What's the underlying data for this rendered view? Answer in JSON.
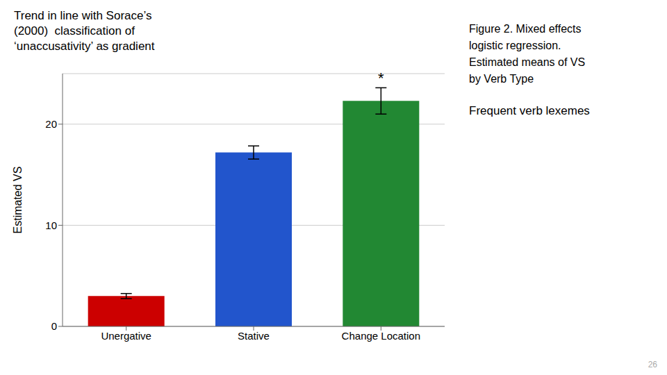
{
  "chart_data": {
    "type": "bar",
    "title": [
      "Trend in line with Sorace’s",
      "(2000)  classification of",
      "‘unaccusativity’ as gradient"
    ],
    "categories": [
      "Unergative",
      "Stative",
      "Change Location"
    ],
    "values": [
      3.0,
      17.2,
      22.3
    ],
    "errors": [
      0.25,
      0.65,
      1.3
    ],
    "colors": [
      "#cc0000",
      "#2255cc",
      "#228833"
    ],
    "ylim": [
      0,
      25
    ],
    "yticks": [
      0,
      10,
      20
    ],
    "ylabel": "Estimated VS",
    "grid": true,
    "annotations": [
      {
        "text": "*",
        "category": "Change Location"
      }
    ],
    "caption": [
      "Figure 2. Mixed effects",
      "logistic regression.",
      "Estimated means of VS",
      "by Verb Type",
      "Frequent verb lexemes"
    ],
    "slide_number": "26"
  }
}
